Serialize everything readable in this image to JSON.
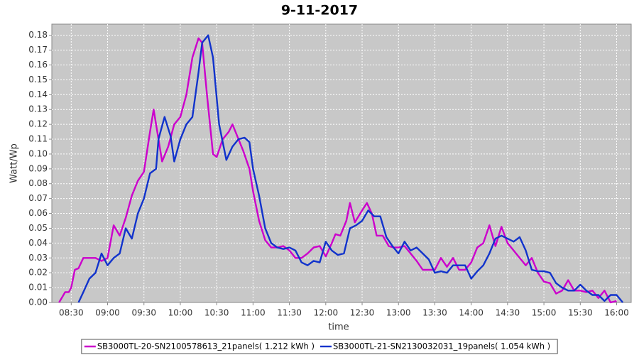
{
  "chart_data": {
    "type": "line",
    "title": "9-11-2017",
    "x_label": "time",
    "y_label": "Watt/Wp",
    "grid": true,
    "legend": "bottom",
    "xlim": [
      "08:14",
      "16:12"
    ],
    "xticks": [
      "08:30",
      "09:00",
      "09:30",
      "10:00",
      "10:30",
      "11:00",
      "11:30",
      "12:00",
      "12:30",
      "13:00",
      "13:30",
      "14:00",
      "14:30",
      "15:00",
      "15:30",
      "16:00"
    ],
    "ylim": [
      0,
      0.1875
    ],
    "yticks": [
      {
        "value": 0,
        "label": "0.00"
      },
      {
        "value": 0.01,
        "label": "0.01"
      },
      {
        "value": 0.02,
        "label": "0.02"
      },
      {
        "value": 0.03,
        "label": "0.03"
      },
      {
        "value": 0.04,
        "label": "0.04"
      },
      {
        "value": 0.05,
        "label": "0.05"
      },
      {
        "value": 0.06,
        "label": "0.06"
      },
      {
        "value": 0.07,
        "label": "0.07"
      },
      {
        "value": 0.08,
        "label": "0.08"
      },
      {
        "value": 0.09,
        "label": "0.09"
      },
      {
        "value": 0.1,
        "label": "0.10"
      },
      {
        "value": 0.11,
        "label": "0.11"
      },
      {
        "value": 0.12,
        "label": "0.12"
      },
      {
        "value": 0.13,
        "label": "0.13"
      },
      {
        "value": 0.14,
        "label": "0.14"
      },
      {
        "value": 0.15,
        "label": "0.15"
      },
      {
        "value": 0.16,
        "label": "0.16"
      },
      {
        "value": 0.17,
        "label": "0.17"
      },
      {
        "value": 0.18,
        "label": "0.18"
      }
    ],
    "series": [
      {
        "name": "SB3000TL-20-SN2100578613_21panels( 1.212 kWh )",
        "color": "#cc00cc",
        "x": [
          "08:20",
          "08:25",
          "08:28",
          "08:30",
          "08:33",
          "08:36",
          "08:40",
          "08:45",
          "08:50",
          "08:55",
          "09:00",
          "09:05",
          "09:10",
          "09:15",
          "09:20",
          "09:25",
          "09:30",
          "09:35",
          "09:38",
          "09:42",
          "09:45",
          "09:50",
          "09:55",
          "10:00",
          "10:05",
          "10:10",
          "10:15",
          "10:18",
          "10:22",
          "10:27",
          "10:30",
          "10:35",
          "10:40",
          "10:43",
          "10:47",
          "10:52",
          "10:57",
          "11:00",
          "11:05",
          "11:10",
          "11:15",
          "11:20",
          "11:25",
          "11:30",
          "11:35",
          "11:40",
          "11:45",
          "11:50",
          "11:55",
          "12:00",
          "12:05",
          "12:08",
          "12:12",
          "12:17",
          "12:20",
          "12:24",
          "12:30",
          "12:34",
          "12:38",
          "12:42",
          "12:47",
          "12:52",
          "12:56",
          "13:00",
          "13:05",
          "13:10",
          "13:15",
          "13:20",
          "13:25",
          "13:30",
          "13:35",
          "13:40",
          "13:45",
          "13:50",
          "13:55",
          "14:00",
          "14:05",
          "14:10",
          "14:15",
          "14:20",
          "14:25",
          "14:30",
          "14:35",
          "14:40",
          "14:45",
          "14:50",
          "14:55",
          "15:00",
          "15:05",
          "15:10",
          "15:15",
          "15:20",
          "15:25",
          "15:30",
          "15:35",
          "15:40",
          "15:45",
          "15:50",
          "15:55",
          "16:00"
        ],
        "values": [
          0,
          0.007,
          0.007,
          0.01,
          0.022,
          0.023,
          0.03,
          0.03,
          0.03,
          0.028,
          0.03,
          0.052,
          0.045,
          0.057,
          0.072,
          0.082,
          0.088,
          0.115,
          0.13,
          0.11,
          0.095,
          0.105,
          0.12,
          0.125,
          0.14,
          0.165,
          0.178,
          0.175,
          0.14,
          0.1,
          0.098,
          0.11,
          0.115,
          0.12,
          0.112,
          0.102,
          0.09,
          0.075,
          0.055,
          0.042,
          0.037,
          0.037,
          0.038,
          0.035,
          0.03,
          0.03,
          0.033,
          0.037,
          0.038,
          0.031,
          0.04,
          0.046,
          0.045,
          0.055,
          0.067,
          0.054,
          0.062,
          0.067,
          0.06,
          0.045,
          0.045,
          0.038,
          0.037,
          0.037,
          0.038,
          0.033,
          0.028,
          0.022,
          0.022,
          0.022,
          0.03,
          0.024,
          0.03,
          0.022,
          0.022,
          0.027,
          0.037,
          0.04,
          0.052,
          0.038,
          0.051,
          0.04,
          0.035,
          0.03,
          0.025,
          0.03,
          0.02,
          0.014,
          0.013,
          0.006,
          0.008,
          0.015,
          0.008,
          0.008,
          0.007,
          0.008,
          0.003,
          0.008,
          0,
          0.001
        ]
      },
      {
        "name": "SB3000TL-21-SN2130032031_19panels( 1.054 kWh )",
        "color": "#1133cc",
        "x": [
          "08:36",
          "08:40",
          "08:45",
          "08:50",
          "08:55",
          "09:00",
          "09:05",
          "09:10",
          "09:15",
          "09:20",
          "09:25",
          "09:30",
          "09:35",
          "09:40",
          "09:42",
          "09:47",
          "09:52",
          "09:55",
          "10:00",
          "10:05",
          "10:10",
          "10:15",
          "10:18",
          "10:23",
          "10:27",
          "10:32",
          "10:38",
          "10:43",
          "10:48",
          "10:53",
          "10:57",
          "11:00",
          "11:05",
          "11:10",
          "11:15",
          "11:20",
          "11:25",
          "11:30",
          "11:35",
          "11:40",
          "11:45",
          "11:50",
          "11:55",
          "12:00",
          "12:05",
          "12:10",
          "12:15",
          "12:20",
          "12:25",
          "12:30",
          "12:35",
          "12:40",
          "12:45",
          "12:50",
          "12:55",
          "13:00",
          "13:05",
          "13:10",
          "13:15",
          "13:20",
          "13:25",
          "13:30",
          "13:35",
          "13:40",
          "13:45",
          "13:50",
          "13:55",
          "14:00",
          "14:05",
          "14:10",
          "14:15",
          "14:20",
          "14:25",
          "14:30",
          "14:35",
          "14:40",
          "14:45",
          "14:50",
          "14:55",
          "15:00",
          "15:05",
          "15:10",
          "15:15",
          "15:20",
          "15:25",
          "15:30",
          "15:35",
          "15:40",
          "15:45",
          "15:50",
          "15:55",
          "16:00",
          "16:05"
        ],
        "values": [
          0,
          0.007,
          0.016,
          0.02,
          0.033,
          0.025,
          0.03,
          0.033,
          0.05,
          0.043,
          0.06,
          0.07,
          0.087,
          0.09,
          0.11,
          0.125,
          0.112,
          0.095,
          0.11,
          0.12,
          0.125,
          0.155,
          0.175,
          0.18,
          0.165,
          0.12,
          0.096,
          0.105,
          0.11,
          0.111,
          0.108,
          0.09,
          0.072,
          0.05,
          0.04,
          0.037,
          0.036,
          0.037,
          0.035,
          0.027,
          0.025,
          0.028,
          0.027,
          0.041,
          0.035,
          0.032,
          0.033,
          0.05,
          0.052,
          0.055,
          0.062,
          0.058,
          0.058,
          0.044,
          0.038,
          0.033,
          0.041,
          0.035,
          0.037,
          0.033,
          0.029,
          0.02,
          0.021,
          0.02,
          0.025,
          0.025,
          0.025,
          0.016,
          0.021,
          0.025,
          0.033,
          0.043,
          0.045,
          0.043,
          0.041,
          0.044,
          0.035,
          0.022,
          0.021,
          0.021,
          0.02,
          0.013,
          0.01,
          0.008,
          0.008,
          0.012,
          0.008,
          0.005,
          0.005,
          0.001,
          0.005,
          0.005,
          0
        ]
      }
    ]
  }
}
